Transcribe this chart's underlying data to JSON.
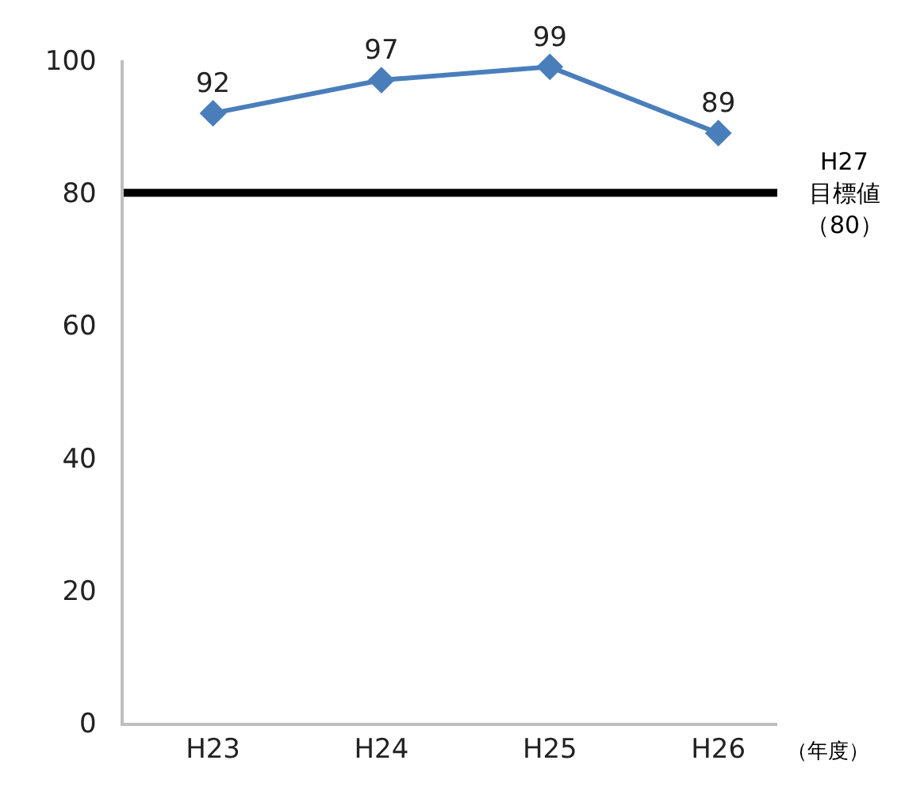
{
  "chart_data": {
    "type": "line",
    "categories": [
      "H23",
      "H24",
      "H25",
      "H26"
    ],
    "series": [
      {
        "color": "#4a7ebb",
        "values": [
          92,
          97,
          99,
          89
        ]
      }
    ],
    "marker": "diamond",
    "data_labels": true,
    "ylim": [
      0,
      100
    ],
    "yticks": [
      0,
      20,
      40,
      60,
      80,
      100
    ],
    "xlabel": "（年度）",
    "ref_lines": [
      {
        "axis": "y",
        "value": 80,
        "label": "H27目標値（80）",
        "color": "#000000"
      }
    ]
  }
}
